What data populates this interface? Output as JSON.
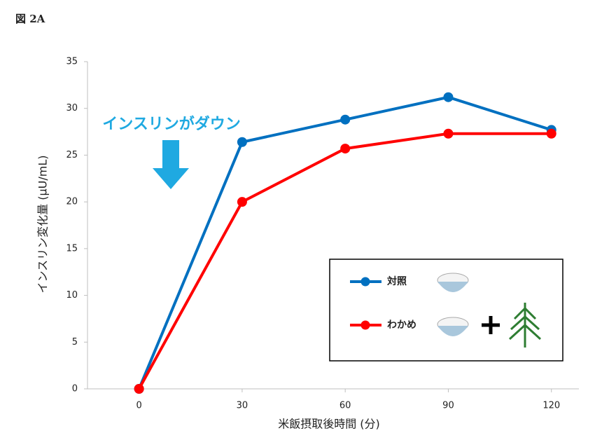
{
  "figure_label": "図 2A",
  "chart_data": {
    "type": "line",
    "x": [
      0,
      30,
      60,
      90,
      120
    ],
    "xlim": [
      -15,
      128
    ],
    "xticks": [
      0,
      30,
      60,
      90,
      120
    ],
    "ylim": [
      0,
      35
    ],
    "yticks": [
      0,
      5,
      10,
      15,
      20,
      25,
      30,
      35
    ],
    "xlabel": "米飯摂取後時間 (分)",
    "ylabel": "インスリン変化量 (μU/mL)",
    "annotation": "インスリンがダウン",
    "series": [
      {
        "name": "対照",
        "color": "#0070c0",
        "values": [
          0,
          26.4,
          28.8,
          31.2,
          27.7
        ]
      },
      {
        "name": "わかめ",
        "color": "#ff0000",
        "values": [
          0,
          20.0,
          25.7,
          27.3,
          27.3
        ]
      }
    ]
  }
}
